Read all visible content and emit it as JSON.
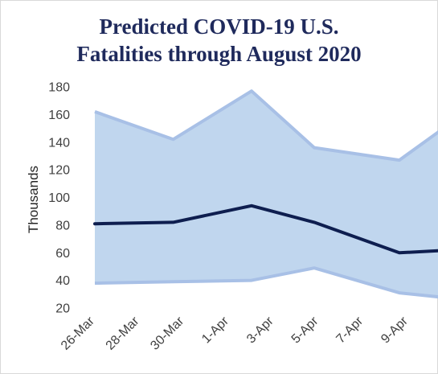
{
  "chart_data": {
    "type": "line",
    "title_lines": [
      "Predicted COVID-19 U.S.",
      "Fatalities through August 2020"
    ],
    "xlabel": "",
    "ylabel": "Thousands",
    "categories": [
      "26-Mar",
      "28-Mar",
      "30-Mar",
      "1-Apr",
      "3-Apr",
      "5-Apr",
      "7-Apr",
      "9-Apr"
    ],
    "y_ticks": [
      20,
      40,
      60,
      80,
      100,
      120,
      140,
      160,
      180
    ],
    "ylim": [
      20,
      180
    ],
    "grid": false,
    "legend": "none",
    "x_points": [
      0,
      1.75,
      3.5,
      4.9,
      6.8,
      8
    ],
    "upper": [
      162,
      142,
      177,
      136,
      127,
      155
    ],
    "lower": [
      38,
      39,
      40,
      49,
      31,
      27
    ],
    "mid": [
      81,
      82,
      94,
      82,
      60,
      62
    ],
    "colors": {
      "band": "#c0d6ee",
      "band_edge": "#a8c0e6",
      "line": "#0e1e4f",
      "title": "#1f2a5c"
    }
  }
}
